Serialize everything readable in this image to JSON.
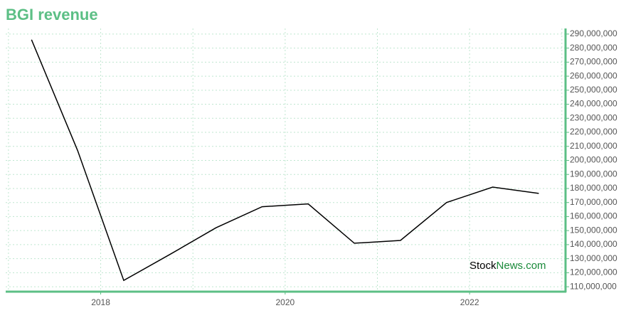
{
  "chart_data": {
    "type": "line",
    "title": "BGI revenue",
    "x": [
      2017.25,
      2017.75,
      2018.25,
      2018.75,
      2019.25,
      2019.75,
      2020.25,
      2020.75,
      2021.25,
      2021.75,
      2022.25,
      2022.75
    ],
    "series": [
      {
        "name": "BGI revenue",
        "color": "#000000",
        "values": [
          286000000,
          207000000,
          114500000,
          133000000,
          152000000,
          167000000,
          169000000,
          141000000,
          143000000,
          170000000,
          181000000,
          176500000
        ]
      }
    ],
    "xlim": [
      2016.97,
      2023.04
    ],
    "xticks": [
      2018,
      2020,
      2022
    ],
    "xgrid": [
      2017,
      2018,
      2019,
      2020,
      2021,
      2022,
      2023
    ],
    "ylim": [
      106500000,
      294000000
    ],
    "yticks": [
      {
        "value": 110000000,
        "label": "110,000,000"
      },
      {
        "value": 120000000,
        "label": "120,000,000"
      },
      {
        "value": 130000000,
        "label": "130,000,000"
      },
      {
        "value": 140000000,
        "label": "140,000,000"
      },
      {
        "value": 150000000,
        "label": "150,000,000"
      },
      {
        "value": 160000000,
        "label": "160,000,000"
      },
      {
        "value": 170000000,
        "label": "170,000,000"
      },
      {
        "value": 180000000,
        "label": "180,000,000"
      },
      {
        "value": 190000000,
        "label": "190,000,000"
      },
      {
        "value": 200000000,
        "label": "200,000,000"
      },
      {
        "value": 210000000,
        "label": "210,000,000"
      },
      {
        "value": 220000000,
        "label": "220,000,000"
      },
      {
        "value": 230000000,
        "label": "230,000,000"
      },
      {
        "value": 240000000,
        "label": "240,000,000"
      },
      {
        "value": 250000000,
        "label": "250,000,000"
      },
      {
        "value": 260000000,
        "label": "260,000,000"
      },
      {
        "value": 270000000,
        "label": "270,000,000"
      },
      {
        "value": 280000000,
        "label": "280,000,000"
      },
      {
        "value": 290000000,
        "label": "290,000,000"
      }
    ],
    "grid": true,
    "axis_color": "#5cbf85",
    "watermark": [
      "Stock",
      "News.com"
    ]
  }
}
